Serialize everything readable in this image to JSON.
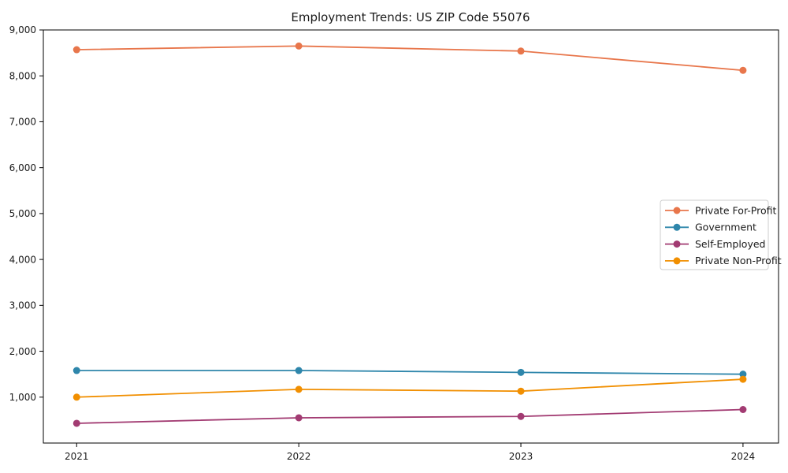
{
  "chart_data": {
    "type": "line",
    "title": "Employment Trends: US ZIP Code 55076",
    "xlabel": "",
    "ylabel": "",
    "x": [
      2021,
      2022,
      2023,
      2024
    ],
    "x_tick_labels": [
      "2021",
      "2022",
      "2023",
      "2024"
    ],
    "y_ticks": [
      1000,
      2000,
      3000,
      4000,
      5000,
      6000,
      7000,
      8000,
      9000
    ],
    "y_tick_labels": [
      "1,000",
      "2,000",
      "3,000",
      "4,000",
      "5,000",
      "6,000",
      "7,000",
      "8,000",
      "9,000"
    ],
    "xlim": [
      2020.85,
      2024.16
    ],
    "ylim": [
      0,
      9000
    ],
    "grid": false,
    "legend_position": "center-right",
    "background_color": "#ffffff",
    "axes_color": "#000000",
    "legend_border_color": "#cccccc",
    "series": [
      {
        "name": "Private For-Profit",
        "color": "#E8764B",
        "values": [
          8570,
          8650,
          8540,
          8120
        ]
      },
      {
        "name": "Government",
        "color": "#2E86AB",
        "values": [
          1580,
          1580,
          1540,
          1500
        ]
      },
      {
        "name": "Self-Employed",
        "color": "#A23B72",
        "values": [
          430,
          550,
          580,
          730
        ]
      },
      {
        "name": "Private Non-Profit",
        "color": "#F18F01",
        "values": [
          1000,
          1170,
          1130,
          1390
        ]
      }
    ]
  }
}
